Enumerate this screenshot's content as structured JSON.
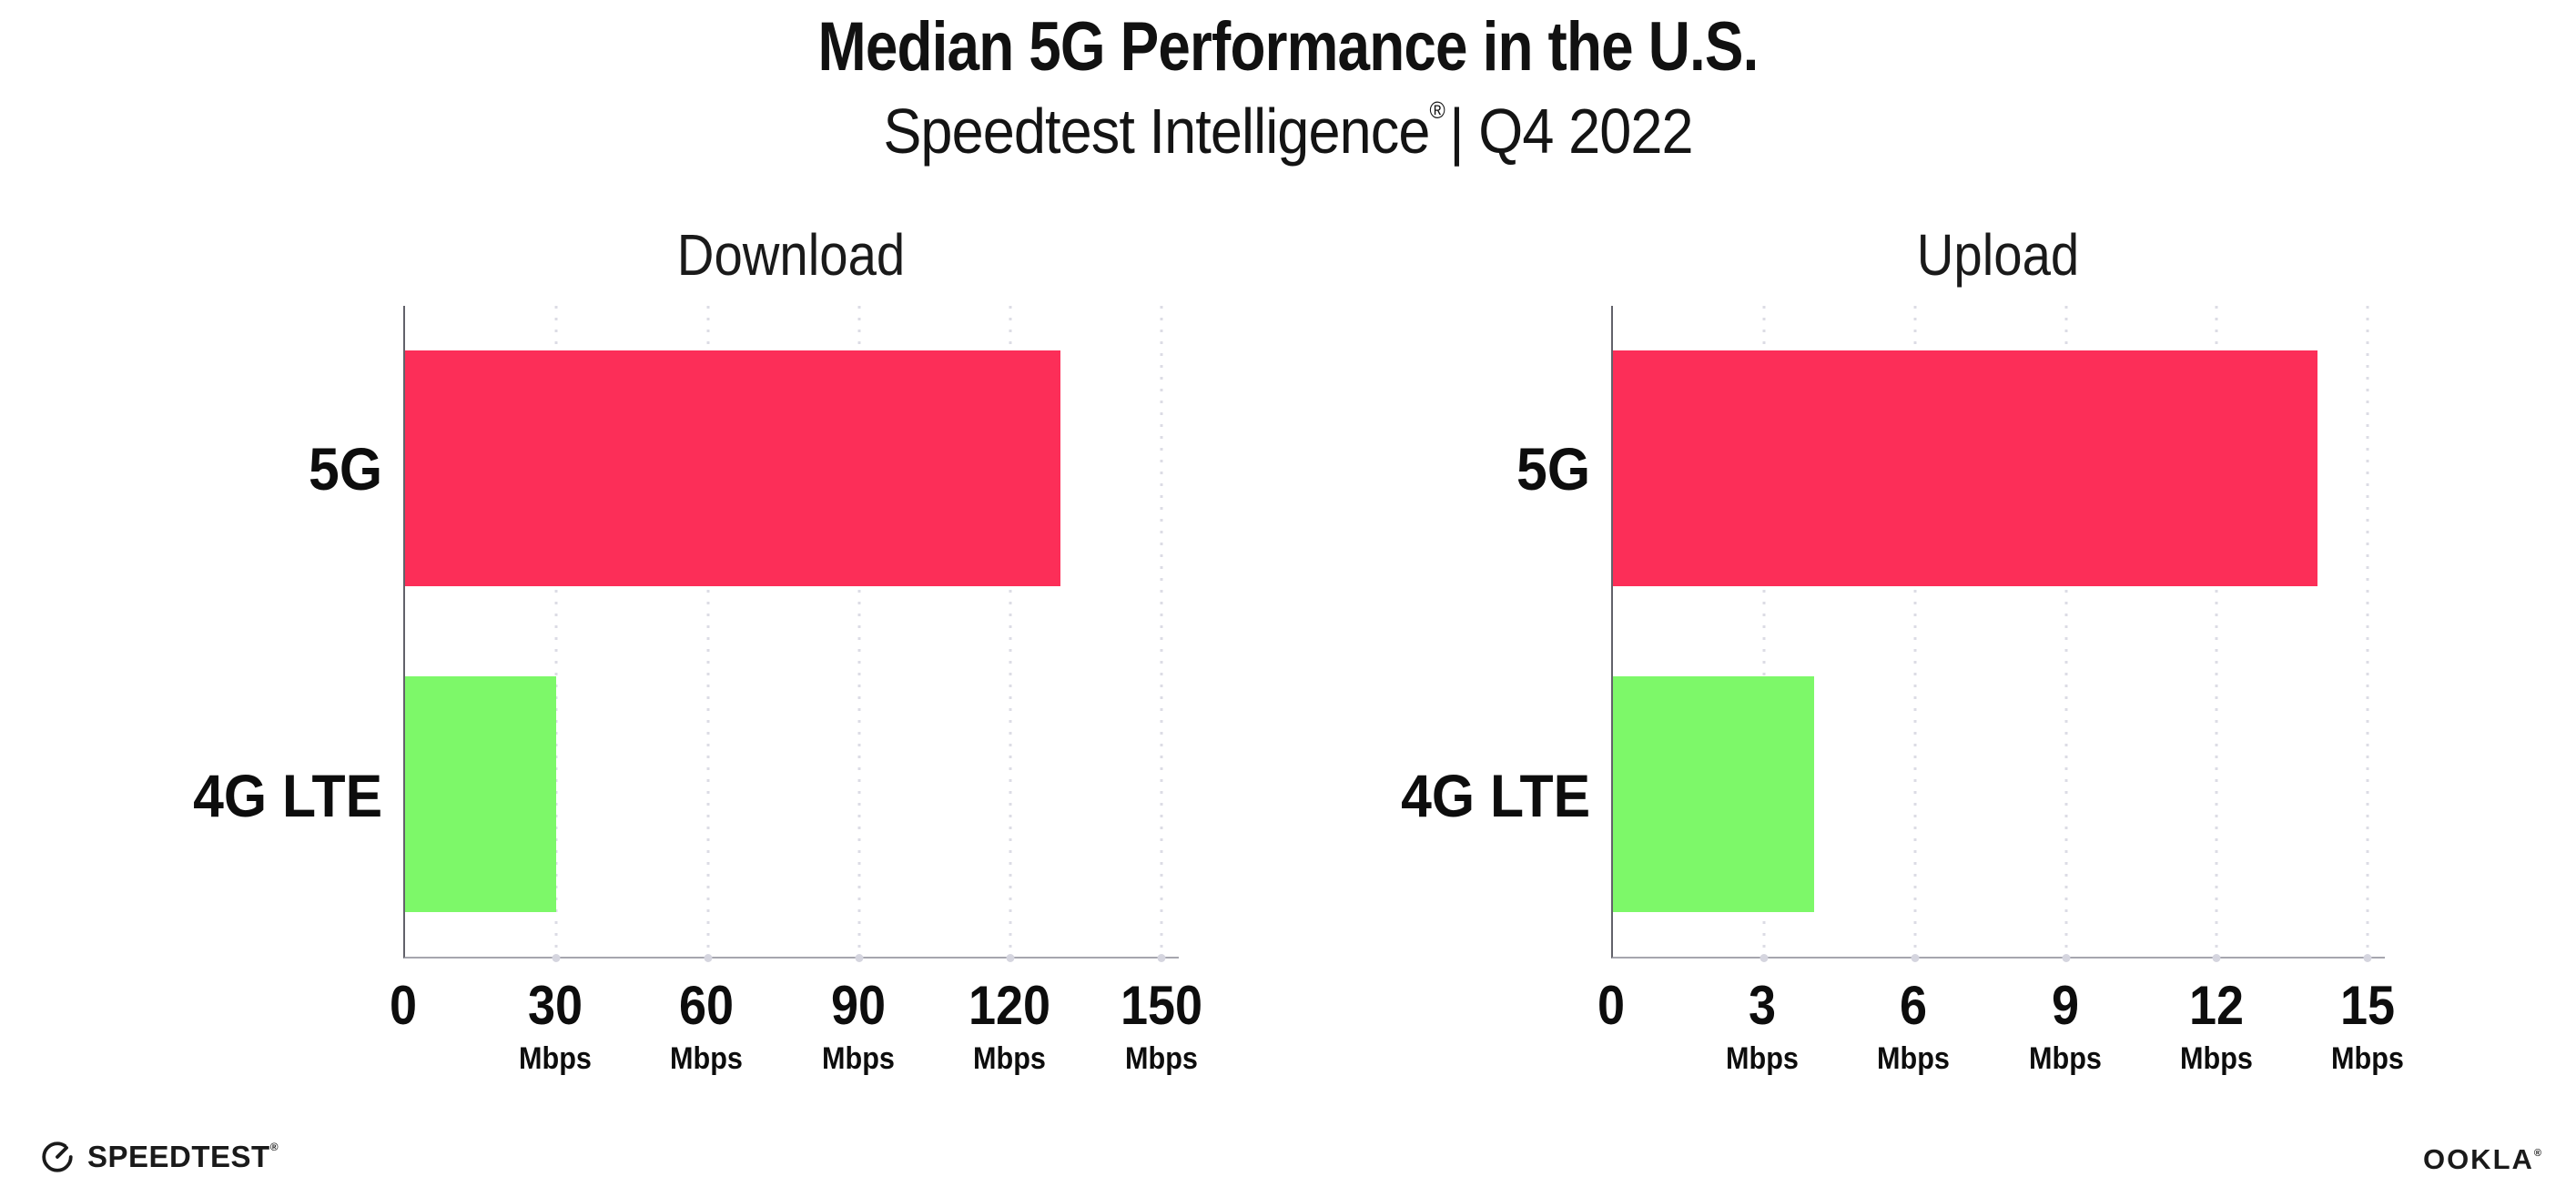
{
  "page": {
    "title": "Median 5G Performance in the U.S.",
    "subtitle_brand": "Speedtest Intelligence",
    "subtitle_reg": "®",
    "subtitle_rest": "| Q4 2022"
  },
  "footer": {
    "speedtest_label": "SPEEDTEST",
    "speedtest_mark": "®",
    "ookla_label": "OOKLA",
    "ookla_mark": "®"
  },
  "colors": {
    "bar_5g": "#FC2E58",
    "bar_4g_lte": "#7DF869",
    "axis_line": "#A6A6AE",
    "gridline_dots": "#DCDCE5",
    "text": "#111111"
  },
  "chart_data": [
    {
      "type": "bar",
      "orientation": "horizontal",
      "title": "Download",
      "categories": [
        "5G",
        "4G LTE"
      ],
      "values": [
        130,
        30
      ],
      "unit": "Mbps",
      "xlabel": "",
      "ylabel": "",
      "xlim": [
        0,
        150
      ],
      "xticks": [
        0,
        30,
        60,
        90,
        120,
        150
      ],
      "bar_colors": [
        "#FC2E58",
        "#7DF869"
      ],
      "grid": "dotted-vertical",
      "legend": "none"
    },
    {
      "type": "bar",
      "orientation": "horizontal",
      "title": "Upload",
      "categories": [
        "5G",
        "4G LTE"
      ],
      "values": [
        14,
        4
      ],
      "unit": "Mbps",
      "xlabel": "",
      "ylabel": "",
      "xlim": [
        0,
        15
      ],
      "xticks": [
        0,
        3,
        6,
        9,
        12,
        15
      ],
      "bar_colors": [
        "#FC2E58",
        "#7DF869"
      ],
      "grid": "dotted-vertical",
      "legend": "none"
    }
  ]
}
